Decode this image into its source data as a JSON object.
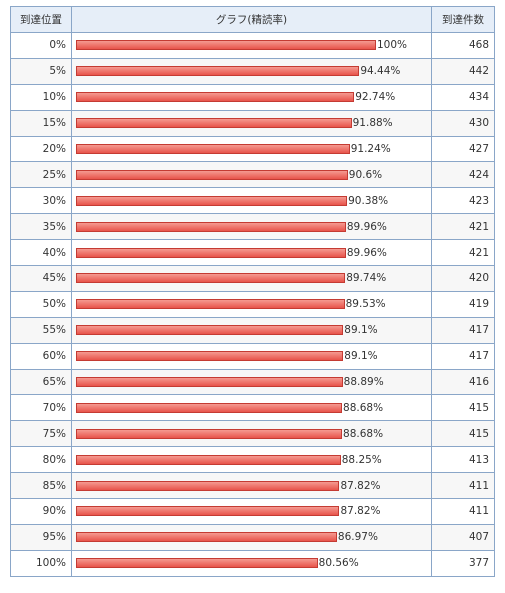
{
  "chart_data": {
    "type": "bar",
    "columns": [
      "到達位置",
      "グラフ(精読率)",
      "到達件数"
    ],
    "rows": [
      {
        "position": "0%",
        "rate": 100,
        "rate_label": "100%",
        "count": "468"
      },
      {
        "position": "5%",
        "rate": 94.44,
        "rate_label": "94.44%",
        "count": "442"
      },
      {
        "position": "10%",
        "rate": 92.74,
        "rate_label": "92.74%",
        "count": "434"
      },
      {
        "position": "15%",
        "rate": 91.88,
        "rate_label": "91.88%",
        "count": "430"
      },
      {
        "position": "20%",
        "rate": 91.24,
        "rate_label": "91.24%",
        "count": "427"
      },
      {
        "position": "25%",
        "rate": 90.6,
        "rate_label": "90.6%",
        "count": "424"
      },
      {
        "position": "30%",
        "rate": 90.38,
        "rate_label": "90.38%",
        "count": "423"
      },
      {
        "position": "35%",
        "rate": 89.96,
        "rate_label": "89.96%",
        "count": "421"
      },
      {
        "position": "40%",
        "rate": 89.96,
        "rate_label": "89.96%",
        "count": "421"
      },
      {
        "position": "45%",
        "rate": 89.74,
        "rate_label": "89.74%",
        "count": "420"
      },
      {
        "position": "50%",
        "rate": 89.53,
        "rate_label": "89.53%",
        "count": "419"
      },
      {
        "position": "55%",
        "rate": 89.1,
        "rate_label": "89.1%",
        "count": "417"
      },
      {
        "position": "60%",
        "rate": 89.1,
        "rate_label": "89.1%",
        "count": "417"
      },
      {
        "position": "65%",
        "rate": 88.89,
        "rate_label": "88.89%",
        "count": "416"
      },
      {
        "position": "70%",
        "rate": 88.68,
        "rate_label": "88.68%",
        "count": "415"
      },
      {
        "position": "75%",
        "rate": 88.68,
        "rate_label": "88.68%",
        "count": "415"
      },
      {
        "position": "80%",
        "rate": 88.25,
        "rate_label": "88.25%",
        "count": "413"
      },
      {
        "position": "85%",
        "rate": 87.82,
        "rate_label": "87.82%",
        "count": "411"
      },
      {
        "position": "90%",
        "rate": 87.82,
        "rate_label": "87.82%",
        "count": "411"
      },
      {
        "position": "95%",
        "rate": 86.97,
        "rate_label": "86.97%",
        "count": "407"
      },
      {
        "position": "100%",
        "rate": 80.56,
        "rate_label": "80.56%",
        "count": "377"
      }
    ],
    "xlim": [
      0,
      100
    ],
    "colors": {
      "bar": "#e8544b",
      "bar_light": "#f59a91",
      "border": "#8aa6c8",
      "header_bg": "#e6eef8"
    }
  }
}
